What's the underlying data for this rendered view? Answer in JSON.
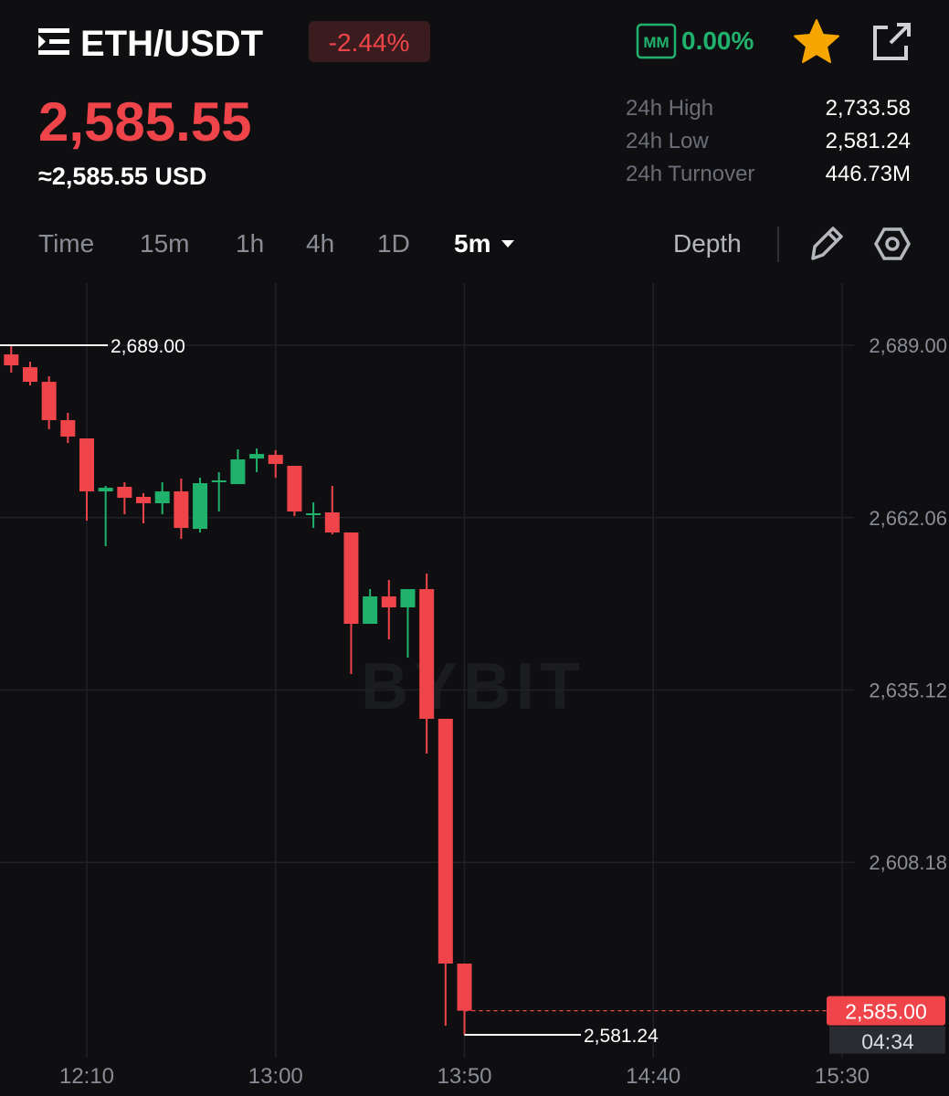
{
  "header": {
    "pair": "ETH/USDT",
    "change": "-2.44%",
    "mm_label": "MM",
    "mm_value": "0.00%",
    "last_price": "2,585.55",
    "usd_price": "≈2,585.55 USD",
    "stats": [
      {
        "label": "24h High",
        "value": "2,733.58"
      },
      {
        "label": "24h Low",
        "value": "2,581.24"
      },
      {
        "label": "24h Turnover",
        "value": "446.73M"
      }
    ]
  },
  "tabs": [
    "Time",
    "15m",
    "1h",
    "4h",
    "1D",
    "5m",
    "Depth"
  ],
  "chart_data": {
    "type": "candlestick",
    "x": [
      "11:50",
      "11:55",
      "12:00",
      "12:05",
      "12:10",
      "12:15",
      "12:20",
      "12:25",
      "12:30",
      "12:35",
      "12:40",
      "12:45",
      "12:50",
      "12:55",
      "13:00",
      "13:05",
      "13:10",
      "13:15",
      "13:20",
      "13:25",
      "13:30",
      "13:35",
      "13:40",
      "13:45",
      "13:50"
    ],
    "open": [
      2687.57,
      2685.57,
      2683.29,
      2677.3,
      2674.44,
      2666.16,
      2666.88,
      2665.31,
      2664.31,
      2666.16,
      2660.31,
      2667.59,
      2667.3,
      2671.3,
      2671.87,
      2670.16,
      2662.59,
      2662.88,
      2659.74,
      2645.47,
      2649.75,
      2648.04,
      2650.89,
      2630.62,
      2592.37
    ],
    "high": [
      2689.0,
      2686.43,
      2684.15,
      2678.44,
      2674.44,
      2667.02,
      2667.59,
      2665.88,
      2667.59,
      2668.16,
      2668.3,
      2669.16,
      2672.73,
      2672.87,
      2672.59,
      2670.16,
      2664.45,
      2667.02,
      2659.74,
      2650.89,
      2652.32,
      2650.89,
      2653.32,
      2630.62,
      2592.37
    ],
    "low": [
      2684.72,
      2682.72,
      2675.87,
      2673.73,
      2661.59,
      2657.6,
      2662.59,
      2661.17,
      2662.59,
      2658.74,
      2659.74,
      2663.02,
      2667.3,
      2669.16,
      2668.3,
      2662.31,
      2660.45,
      2659.45,
      2637.62,
      2645.47,
      2643.04,
      2640.19,
      2625.2,
      2582.66,
      2581.24
    ],
    "close": [
      2685.86,
      2683.29,
      2677.3,
      2674.73,
      2666.16,
      2666.73,
      2665.16,
      2664.31,
      2666.16,
      2660.45,
      2667.45,
      2667.88,
      2671.16,
      2672.01,
      2670.44,
      2663.02,
      2662.74,
      2659.74,
      2645.47,
      2649.75,
      2648.04,
      2650.89,
      2630.62,
      2592.37,
      2585.0
    ],
    "up_color": "#20b26c",
    "down_color": "#ef454a",
    "ylim": [
      2577.67,
      2698.71
    ],
    "yticks": [
      {
        "value": 2689.0,
        "label": "2,689.00"
      },
      {
        "value": 2662.06,
        "label": "2,662.06"
      },
      {
        "value": 2635.12,
        "label": "2,635.12"
      },
      {
        "value": 2608.18,
        "label": "2,608.18"
      }
    ],
    "xticks": [
      "12:10",
      "13:00",
      "13:50",
      "14:40",
      "15:30"
    ],
    "grid": true,
    "high_marker": {
      "value": 2689.0,
      "label": "2,689.00"
    },
    "low_marker": {
      "value": 2581.24,
      "label": "2,581.24"
    },
    "last_price_tag": {
      "value": 2585.0,
      "label": "2,585.00"
    },
    "countdown": "04:34",
    "watermark": "BYBIT"
  }
}
